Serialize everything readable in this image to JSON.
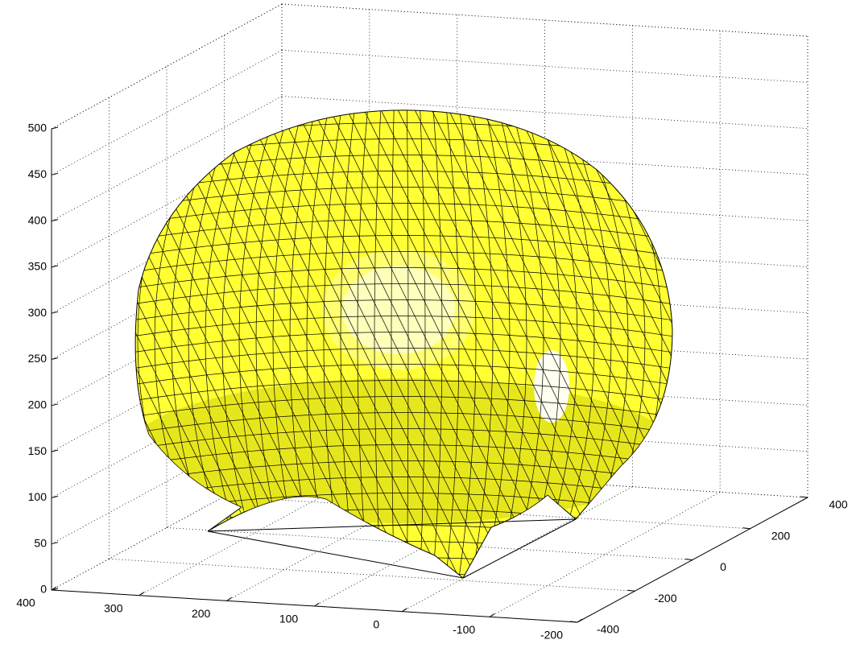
{
  "chart_data": {
    "type": "surface3d",
    "xlim": [
      400,
      -200
    ],
    "xticks": [
      400,
      300,
      200,
      100,
      0,
      -100,
      -200
    ],
    "ylim": [
      -400,
      400
    ],
    "yticks": [
      -400,
      -200,
      0,
      200,
      400
    ],
    "zlim": [
      0,
      500
    ],
    "zticks": [
      0,
      50,
      100,
      150,
      200,
      250,
      300,
      350,
      400,
      450,
      500
    ],
    "grid": true,
    "color": "#ffff33"
  }
}
